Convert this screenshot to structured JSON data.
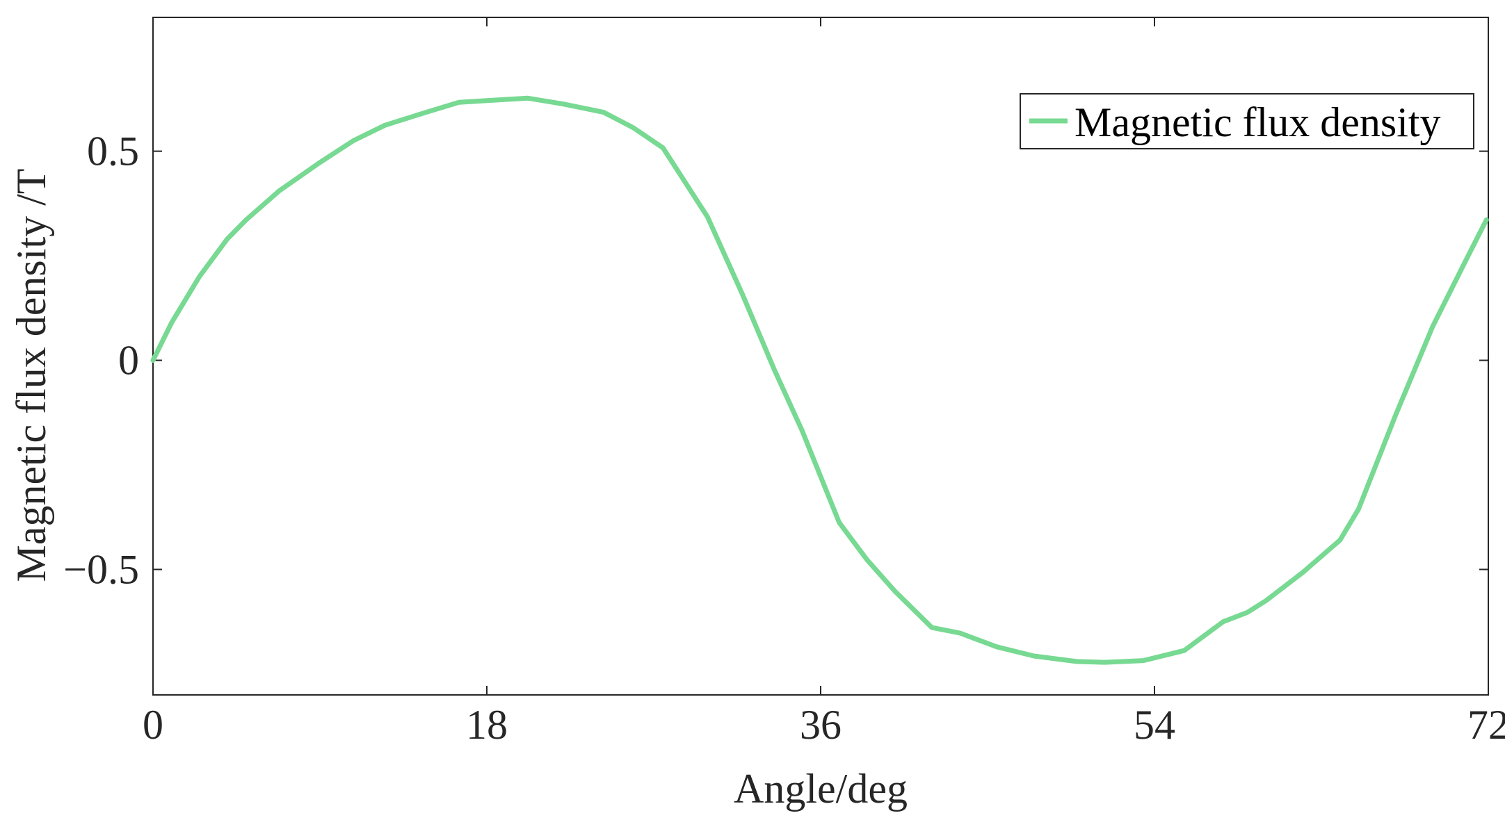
{
  "chart_data": {
    "type": "line",
    "title": "",
    "xlabel": "Angle/deg",
    "ylabel": "Magnetic flux density /T",
    "xlim": [
      0,
      72
    ],
    "ylim": [
      -0.8,
      0.82
    ],
    "xticks": [
      0,
      18,
      36,
      54,
      72
    ],
    "xtick_labels": [
      "0",
      "18",
      "36",
      "54",
      "72"
    ],
    "yticks": [
      -0.5,
      0,
      0.5
    ],
    "ytick_labels": [
      "-0.5",
      "0",
      "0.5"
    ],
    "grid": false,
    "legend_position": "top-right",
    "series": [
      {
        "name": "Magnetic flux density",
        "color": "#77d992",
        "x": [
          0,
          1,
          2.5,
          4,
          5,
          6.8,
          8.9,
          10.8,
          12.5,
          14.5,
          16.5,
          18,
          20.2,
          22.1,
          24.3,
          25.9,
          27.5,
          29.9,
          31.8,
          33.5,
          35,
          37,
          38.5,
          40,
          42,
          43.5,
          45.5,
          47.5,
          49.8,
          51.3,
          53.4,
          55.6,
          57.7,
          59,
          60,
          62,
          64,
          65,
          67,
          69,
          70.8,
          71.9
        ],
        "y": [
          0,
          0.09,
          0.2,
          0.29,
          0.335,
          0.405,
          0.47,
          0.525,
          0.562,
          0.59,
          0.617,
          0.621,
          0.627,
          0.613,
          0.593,
          0.556,
          0.508,
          0.343,
          0.156,
          -0.022,
          -0.168,
          -0.388,
          -0.477,
          -0.552,
          -0.639,
          -0.652,
          -0.685,
          -0.707,
          -0.72,
          -0.722,
          -0.718,
          -0.694,
          -0.625,
          -0.603,
          -0.575,
          -0.507,
          -0.43,
          -0.356,
          -0.131,
          0.081,
          0.24,
          0.336
        ]
      }
    ]
  }
}
